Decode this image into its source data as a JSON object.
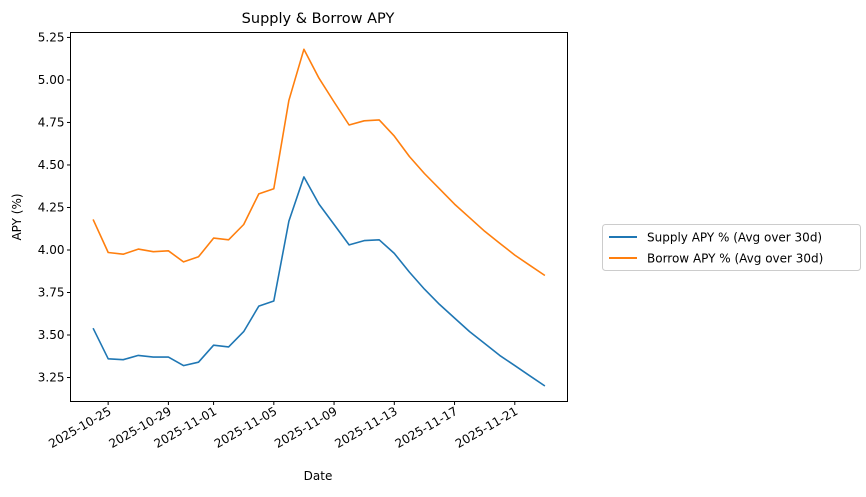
{
  "chart_data": {
    "type": "line",
    "title": "Supply & Borrow APY",
    "xlabel": "Date",
    "ylabel": "APY (%)",
    "x": [
      "2025-10-24",
      "2025-10-25",
      "2025-10-26",
      "2025-10-27",
      "2025-10-28",
      "2025-10-29",
      "2025-10-30",
      "2025-10-31",
      "2025-11-01",
      "2025-11-02",
      "2025-11-03",
      "2025-11-04",
      "2025-11-05",
      "2025-11-06",
      "2025-11-07",
      "2025-11-08",
      "2025-11-09",
      "2025-11-10",
      "2025-11-11",
      "2025-11-12",
      "2025-11-13",
      "2025-11-14",
      "2025-11-15",
      "2025-11-16",
      "2025-11-17",
      "2025-11-18",
      "2025-11-19",
      "2025-11-20",
      "2025-11-21",
      "2025-11-22",
      "2025-11-23"
    ],
    "xticks": [
      "2025-10-25",
      "2025-10-29",
      "2025-11-01",
      "2025-11-05",
      "2025-11-09",
      "2025-11-13",
      "2025-11-17",
      "2025-11-21"
    ],
    "yticks": [
      "3.25",
      "3.50",
      "3.75",
      "4.00",
      "4.25",
      "4.50",
      "4.75",
      "5.00",
      "5.25"
    ],
    "ylim": [
      3.109,
      5.279
    ],
    "grid": false,
    "legend_position": "right-outside",
    "series": [
      {
        "name": "Supply APY % (Avg over 30d)",
        "color": "#1f77b4",
        "values": [
          3.54,
          3.36,
          3.355,
          3.38,
          3.37,
          3.37,
          3.32,
          3.34,
          3.44,
          3.43,
          3.52,
          3.67,
          3.7,
          4.17,
          4.43,
          4.27,
          4.15,
          4.03,
          4.055,
          4.06,
          3.98,
          3.87,
          3.77,
          3.68,
          3.6,
          3.52,
          3.45,
          3.38,
          3.32,
          3.26,
          3.2
        ]
      },
      {
        "name": "Borrow APY % (Avg over 30d)",
        "color": "#ff7f0e",
        "values": [
          4.18,
          3.985,
          3.975,
          4.005,
          3.99,
          3.995,
          3.93,
          3.96,
          4.07,
          4.06,
          4.15,
          4.33,
          4.36,
          4.88,
          5.18,
          5.01,
          4.87,
          4.735,
          4.76,
          4.765,
          4.67,
          4.55,
          4.45,
          4.36,
          4.27,
          4.19,
          4.11,
          4.04,
          3.97,
          3.91,
          3.85
        ]
      }
    ]
  }
}
